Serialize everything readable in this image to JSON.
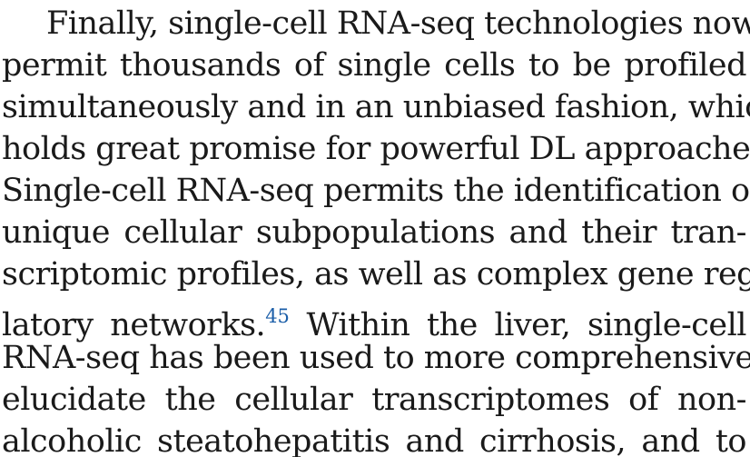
{
  "paragraph": {
    "lines": [
      "Finally, single-cell RNA-seq technologies now",
      "permit thousands of single cells to be profiled",
      "simultaneously and in an unbiased fashion, which",
      "holds great promise for powerful DL approaches.",
      "Single-cell RNA-seq permits the identification of",
      "unique cellular subpopulations and their tran-",
      "scriptomic profiles, as well as complex gene regu-",
      "latory networks.",
      "RNA-seq has been used to more comprehensively",
      "elucidate the cellular transcriptomes of non-",
      "alcoholic steatohepatitis and cirrhosis, and to"
    ],
    "line8_after_citation": "Within the liver, single-cell",
    "citation": "45"
  },
  "colors": {
    "text": "#1a1a1a",
    "citation_link": "#1b5ea8"
  }
}
